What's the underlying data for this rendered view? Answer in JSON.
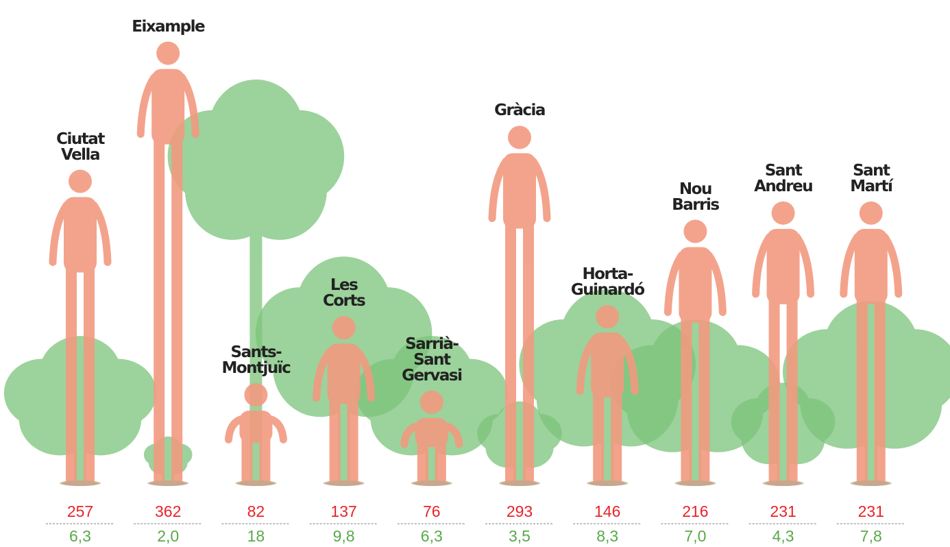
{
  "chart_data": {
    "type": "pictograph",
    "categories": [
      "Ciutat\nVella",
      "Eixample",
      "Sants-\nMontjuïc",
      "Les\nCorts",
      "Sarrià-\nSant\nGervasi",
      "Gràcia",
      "Horta-\nGuinardó",
      "Nou\nBarris",
      "Sant\nAndreu",
      "Sant\nMartí"
    ],
    "series": [
      {
        "color": "#f29a80",
        "values": [
          257,
          362,
          82,
          137,
          76,
          293,
          146,
          216,
          231,
          231
        ]
      },
      {
        "color": "#7cc47a",
        "values": [
          6.3,
          2.0,
          18,
          9.8,
          6.3,
          3.5,
          8.3,
          7.0,
          4.3,
          7.8
        ],
        "value_labels": [
          "6,3",
          "2,0",
          "18",
          "9,8",
          "6,3",
          "3,5",
          "8,3",
          "7,0",
          "4,3",
          "7,8"
        ]
      }
    ]
  }
}
